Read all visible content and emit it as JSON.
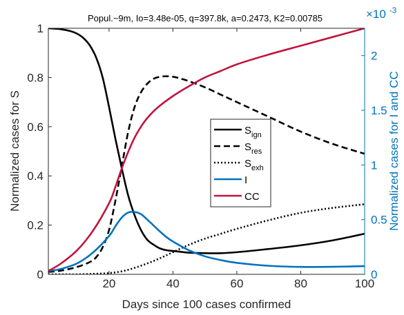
{
  "chart_data": {
    "type": "line",
    "title": "Popul.~9m, Io=3.48e-05, q=397.8k, a=0.2473, K2=0.00785",
    "xlabel": "Days since 100 cases confirmed",
    "ylabel_left": "Normalized cases for S",
    "ylabel_right": "Normalized cases for I and CC",
    "right_axis_exponent": "×10",
    "right_axis_exponent_power": "-3",
    "xlim": [
      1,
      100
    ],
    "ylim_left": [
      0,
      1
    ],
    "ylim_right": [
      0,
      0.00225
    ],
    "x_ticks": [
      20,
      40,
      60,
      80,
      100
    ],
    "y_ticks_left": [
      "0",
      "0.2",
      "0.4",
      "0.6",
      "0.8",
      "1"
    ],
    "y_ticks_right": [
      "0",
      "0.5",
      "1",
      "1.5",
      "2"
    ],
    "grid": false,
    "legend_position": "center-right",
    "colors": {
      "S_ign": "#000000",
      "S_res": "#000000",
      "S_exh": "#000000",
      "I": "#0072BD",
      "CC": "#C0143C",
      "right_axis": "#0072BD"
    },
    "series": [
      {
        "name": "S",
        "subscript": "ign",
        "axis": "left",
        "style": "solid",
        "x": [
          1,
          5,
          8,
          10,
          12,
          14,
          16,
          18,
          20,
          22,
          24,
          26,
          28,
          30,
          32,
          34,
          36,
          38,
          40,
          45,
          50,
          55,
          60,
          70,
          80,
          90,
          100
        ],
        "y": [
          1.0,
          0.996,
          0.988,
          0.978,
          0.96,
          0.93,
          0.88,
          0.8,
          0.68,
          0.55,
          0.43,
          0.32,
          0.24,
          0.18,
          0.14,
          0.12,
          0.105,
          0.098,
          0.095,
          0.088,
          0.086,
          0.086,
          0.09,
          0.103,
          0.118,
          0.138,
          0.165
        ]
      },
      {
        "name": "S",
        "subscript": "res",
        "axis": "left",
        "style": "dashed",
        "x": [
          1,
          5,
          10,
          14,
          16,
          18,
          20,
          22,
          24,
          26,
          28,
          30,
          32,
          34,
          36,
          38,
          40,
          42,
          45,
          50,
          55,
          60,
          70,
          80,
          90,
          100
        ],
        "y": [
          0.01,
          0.015,
          0.03,
          0.05,
          0.07,
          0.11,
          0.18,
          0.3,
          0.44,
          0.58,
          0.68,
          0.74,
          0.775,
          0.795,
          0.803,
          0.805,
          0.803,
          0.797,
          0.785,
          0.76,
          0.73,
          0.7,
          0.64,
          0.58,
          0.53,
          0.49
        ]
      },
      {
        "name": "S",
        "subscript": "exh",
        "axis": "left",
        "style": "dotted",
        "x": [
          1,
          10,
          15,
          20,
          25,
          30,
          35,
          40,
          45,
          50,
          55,
          60,
          70,
          80,
          90,
          100
        ],
        "y": [
          0.0,
          0.0,
          0.002,
          0.005,
          0.015,
          0.035,
          0.06,
          0.09,
          0.12,
          0.145,
          0.165,
          0.185,
          0.22,
          0.25,
          0.27,
          0.285
        ]
      },
      {
        "name": "I",
        "axis": "right",
        "style": "solid",
        "x": [
          1,
          5,
          10,
          15,
          20,
          22,
          24,
          26,
          28,
          30,
          32,
          34,
          36,
          38,
          40,
          45,
          50,
          55,
          60,
          70,
          80,
          90,
          100
        ],
        "y": [
          3e-05,
          5e-05,
          0.0001,
          0.0002,
          0.00035,
          0.00044,
          0.00052,
          0.000565,
          0.00057,
          0.00055,
          0.0005,
          0.000445,
          0.00039,
          0.00034,
          0.0003,
          0.00022,
          0.000165,
          0.00013,
          0.000105,
          7.8e-05,
          6.8e-05,
          6.9e-05,
          7.5e-05
        ]
      },
      {
        "name": "CC",
        "axis": "right",
        "style": "solid",
        "x": [
          1,
          5,
          10,
          15,
          20,
          22,
          24,
          26,
          28,
          30,
          32,
          35,
          40,
          45,
          50,
          55,
          60,
          70,
          80,
          90,
          100
        ],
        "y": [
          3e-05,
          0.0001,
          0.00022,
          0.0004,
          0.00065,
          0.0008,
          0.00097,
          0.00112,
          0.00125,
          0.00135,
          0.00143,
          0.00152,
          0.00163,
          0.00172,
          0.0018,
          0.00186,
          0.00192,
          0.00201,
          0.00209,
          0.00217,
          0.00225
        ]
      }
    ]
  }
}
